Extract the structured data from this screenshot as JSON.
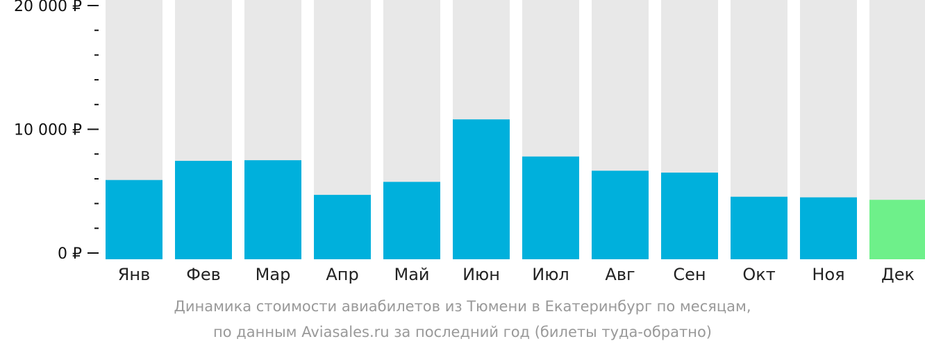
{
  "chart_data": {
    "type": "bar",
    "categories": [
      "Янв",
      "Фев",
      "Мар",
      "Апр",
      "Май",
      "Июн",
      "Июл",
      "Авг",
      "Сен",
      "Окт",
      "Ноя",
      "Дек"
    ],
    "values": [
      5900,
      7450,
      7500,
      4700,
      5750,
      10800,
      7800,
      6650,
      6500,
      4550,
      4500,
      4300
    ],
    "highlight_index": 11,
    "ylim": [
      0,
      20000
    ],
    "yticks": [
      {
        "value": 0,
        "label": "0 ₽"
      },
      {
        "value": 10000,
        "label": "10 000 ₽"
      },
      {
        "value": 20000,
        "label": "20 000 ₽"
      }
    ],
    "minor_tick_step": 2000,
    "xlabel": "",
    "ylabel": "",
    "caption_line1": "Динамика стоимости авиабилетов из Тюмени в Екатеринбург по месяцам,",
    "caption_line2": "по данным Aviasales.ru за последний год (билеты туда-обратно)"
  },
  "colors": {
    "bar": "#00b0dc",
    "bar_highlight": "#6ef08a",
    "bar_background": "#e8e8e8",
    "axis": "#111111",
    "caption": "#999999"
  }
}
